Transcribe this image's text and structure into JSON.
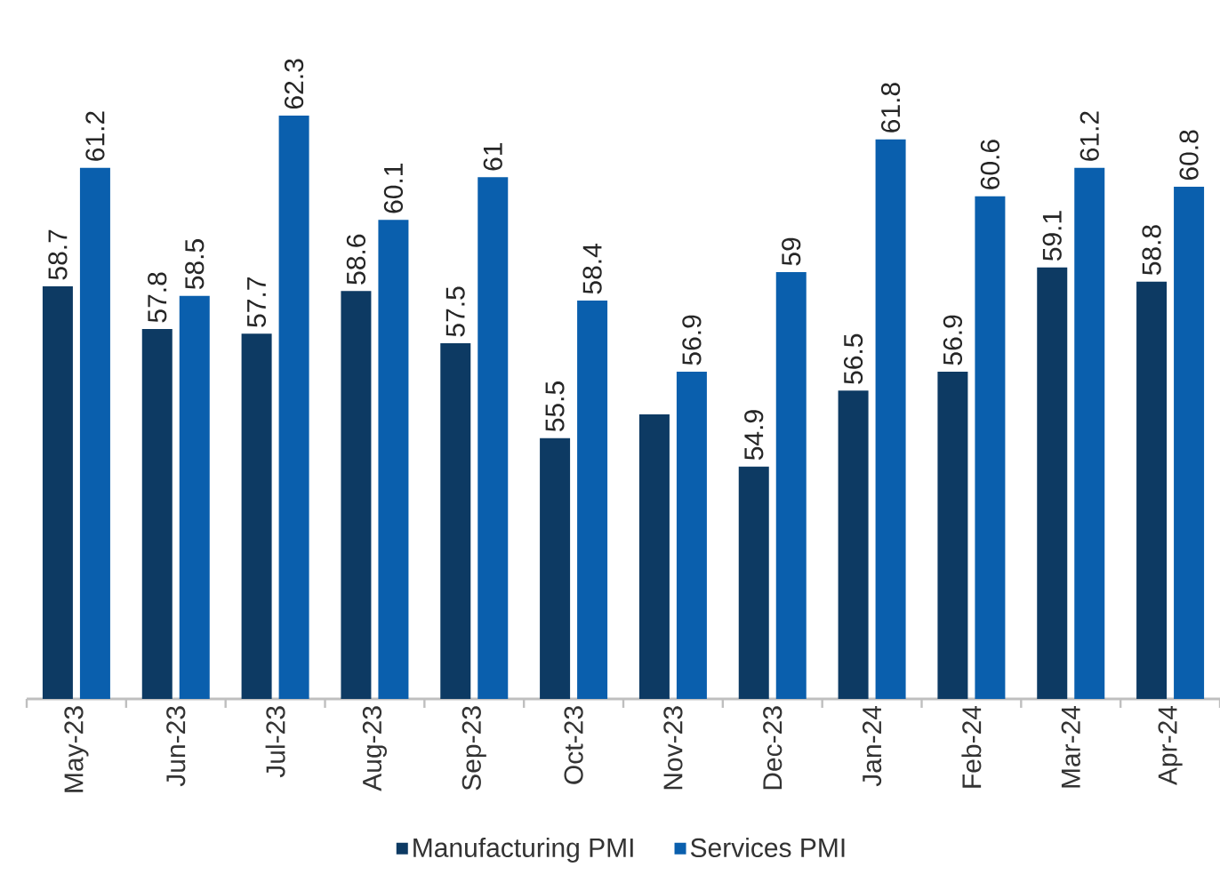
{
  "chart_data": {
    "type": "bar",
    "categories": [
      "May-23",
      "Jun-23",
      "Jul-23",
      "Aug-23",
      "Sep-23",
      "Oct-23",
      "Nov-23",
      "Dec-23",
      "Jan-24",
      "Feb-24",
      "Mar-24",
      "Apr-24"
    ],
    "series": [
      {
        "name": "Manufacturing PMI",
        "color": "#0d3a63",
        "values": [
          58.7,
          57.8,
          57.7,
          58.6,
          57.5,
          55.5,
          56.0,
          54.9,
          56.5,
          56.9,
          59.1,
          58.8
        ],
        "value_labels": [
          "58.7",
          "57.8",
          "57.7",
          "58.6",
          "57.5",
          "55.5",
          null,
          "54.9",
          "56.5",
          "56.9",
          "59.1",
          "58.8"
        ]
      },
      {
        "name": "Services PMI",
        "color": "#0a5fad",
        "values": [
          61.2,
          58.5,
          62.3,
          60.1,
          61,
          58.4,
          56.9,
          59,
          61.8,
          60.6,
          61.2,
          60.8
        ],
        "value_labels": [
          "61.2",
          "58.5",
          "62.3",
          "60.1",
          "61",
          "58.4",
          "56.9",
          "59",
          "61.8",
          "60.6",
          "61.2",
          "60.8"
        ]
      }
    ],
    "ylim": [
      50,
      62.3
    ],
    "tick_labels": "x",
    "legend": "bottom",
    "grid": false
  }
}
